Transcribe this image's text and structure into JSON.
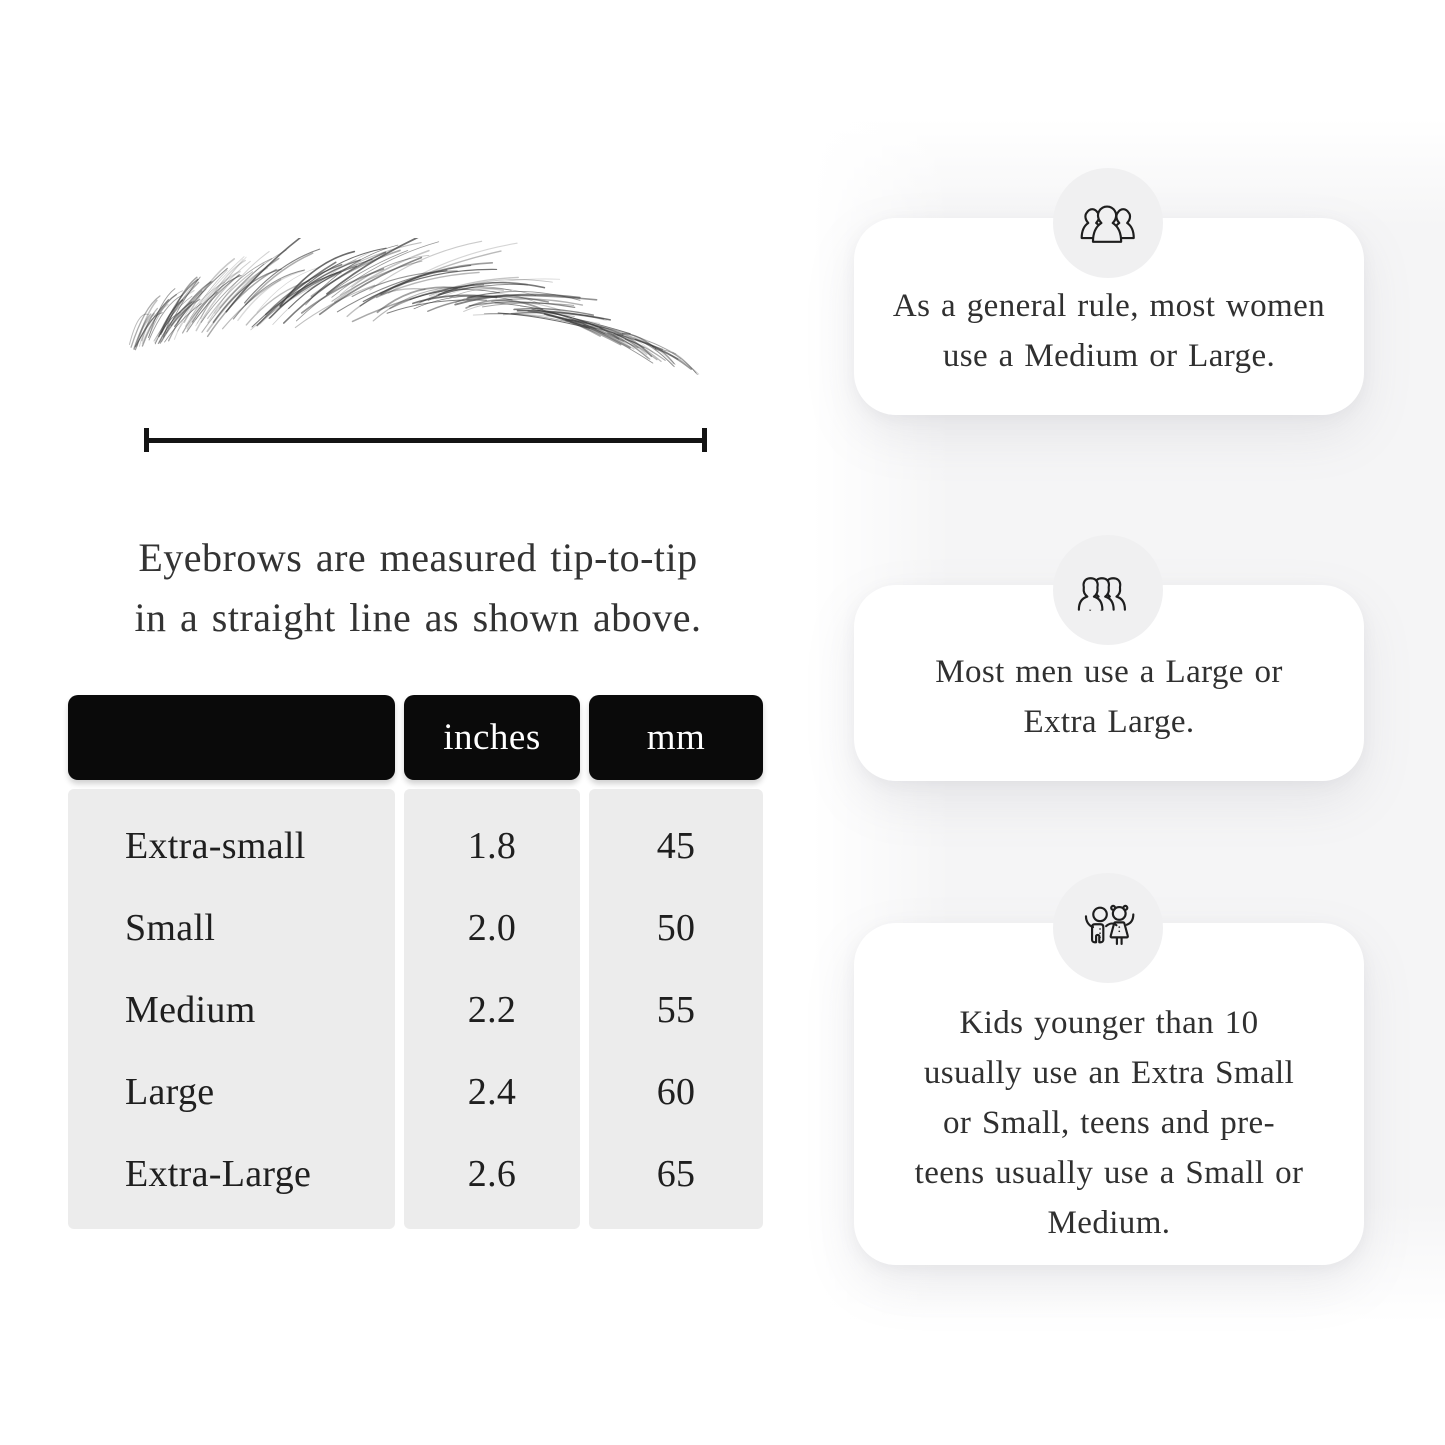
{
  "diagram": {
    "caption_line1": "Eyebrows are measured tip-to-tip",
    "caption_line2": "in a straight line as shown above."
  },
  "table": {
    "headers": [
      "",
      "inches",
      "mm"
    ],
    "rows": [
      {
        "label": "Extra-small",
        "inches": "1.8",
        "mm": "45"
      },
      {
        "label": "Small",
        "inches": "2.0",
        "mm": "50"
      },
      {
        "label": "Medium",
        "inches": "2.2",
        "mm": "55"
      },
      {
        "label": "Large",
        "inches": "2.4",
        "mm": "60"
      },
      {
        "label": "Extra-Large",
        "inches": "2.6",
        "mm": "65"
      }
    ]
  },
  "cards": [
    {
      "icon": "women-group-icon",
      "text": "As a general rule, most women use a Medium or Large."
    },
    {
      "icon": "men-group-icon",
      "text": "Most men use a Large or Extra Large."
    },
    {
      "icon": "kids-icon",
      "text": "Kids younger than 10 usually use an Extra Small or Small, teens and pre-teens usually use a Small or Medium."
    }
  ],
  "colors": {
    "table_header_bg": "#0a0a0a",
    "table_header_text": "#ffffff",
    "table_body_bg": "#ececec",
    "card_bg": "#ffffff",
    "icon_circle_bg": "#f0f0f1",
    "text": "#303030",
    "ruler": "#141414"
  }
}
